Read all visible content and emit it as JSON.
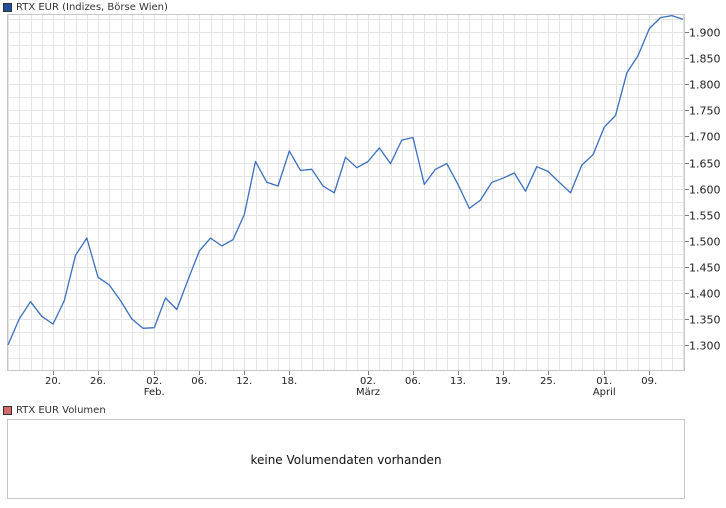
{
  "legend_main": {
    "label": "RTX EUR (Indizes, Börse Wien)",
    "color": "#1f4e9c"
  },
  "legend_volume": {
    "label": "RTX EUR Volumen",
    "color": "#d96a6a"
  },
  "volume_panel": {
    "message": "keine Volumendaten vorhanden"
  },
  "chart_data": {
    "type": "line",
    "title": "RTX EUR (Indizes, Börse Wien)",
    "series": [
      {
        "name": "RTX EUR",
        "color": "#3a6fbf",
        "values": [
          1300,
          1350,
          1383,
          1355,
          1340,
          1385,
          1472,
          1505,
          1430,
          1415,
          1385,
          1350,
          1332,
          1333,
          1390,
          1368,
          1425,
          1480,
          1505,
          1490,
          1502,
          1550,
          1652,
          1612,
          1605,
          1672,
          1635,
          1637,
          1605,
          1592,
          1660,
          1640,
          1652,
          1678,
          1648,
          1693,
          1698,
          1608,
          1637,
          1648,
          1608,
          1562,
          1578,
          1612,
          1620,
          1630,
          1595,
          1642,
          1633,
          1612,
          1592,
          1645,
          1665,
          1718,
          1740,
          1822,
          1855,
          1907,
          1928,
          1932,
          1925
        ]
      }
    ],
    "ylim": [
      1250,
      1935
    ],
    "y_ticks": [
      1300,
      1350,
      1400,
      1450,
      1500,
      1550,
      1600,
      1650,
      1700,
      1750,
      1800,
      1850,
      1900
    ],
    "y_tick_labels": [
      "1.300",
      "1.350",
      "1.400",
      "1.450",
      "1.500",
      "1.550",
      "1.600",
      "1.650",
      "1.700",
      "1.750",
      "1.800",
      "1.850",
      "1.900"
    ],
    "x_ticks": [
      {
        "index": 4,
        "label": "20."
      },
      {
        "index": 8,
        "label": "26."
      },
      {
        "index": 13,
        "label": "02.",
        "sublabel": "Feb."
      },
      {
        "index": 17,
        "label": "06."
      },
      {
        "index": 21,
        "label": "12."
      },
      {
        "index": 25,
        "label": "18."
      },
      {
        "index": 32,
        "label": "02.",
        "sublabel": "März"
      },
      {
        "index": 36,
        "label": "06."
      },
      {
        "index": 40,
        "label": "13."
      },
      {
        "index": 44,
        "label": "19."
      },
      {
        "index": 48,
        "label": "25."
      },
      {
        "index": 53,
        "label": "01.",
        "sublabel": "April"
      },
      {
        "index": 57,
        "label": "09."
      }
    ],
    "y_axis_side": "right",
    "grid": true,
    "legend": "top-left"
  }
}
